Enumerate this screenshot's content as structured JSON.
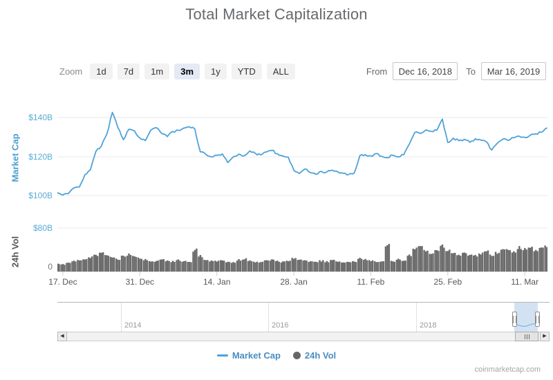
{
  "title": "Total Market Capitalization",
  "controls": {
    "zoom_label": "Zoom",
    "zoom_buttons": [
      {
        "label": "1d",
        "selected": false
      },
      {
        "label": "7d",
        "selected": false
      },
      {
        "label": "1m",
        "selected": false
      },
      {
        "label": "3m",
        "selected": true
      },
      {
        "label": "1y",
        "selected": false
      },
      {
        "label": "YTD",
        "selected": false
      },
      {
        "label": "ALL",
        "selected": false
      }
    ],
    "from_label": "From",
    "from_value": "Dec 16, 2018",
    "to_label": "To",
    "to_value": "Mar 16, 2019"
  },
  "chart_data": {
    "type": "line",
    "x_start": "Dec 16, 2018",
    "x_end": "Mar 16, 2019",
    "x_unit": "day",
    "xaxis_ticks": [
      {
        "label": "17. Dec",
        "day": 1
      },
      {
        "label": "31. Dec",
        "day": 15
      },
      {
        "label": "14. Jan",
        "day": 29
      },
      {
        "label": "28. Jan",
        "day": 43
      },
      {
        "label": "11. Feb",
        "day": 57
      },
      {
        "label": "25. Feb",
        "day": 71
      },
      {
        "label": "11. Mar",
        "day": 85
      }
    ],
    "panes": [
      {
        "type": "line",
        "name": "Market Cap",
        "yaxis_title": "Market Cap",
        "unit": "USD billions",
        "ylim": [
          97,
          154
        ],
        "yticks": [
          "$100B",
          "$120B",
          "$140B"
        ],
        "color": "#4da2d8",
        "grid": true,
        "values": [
          101.4,
          100.2,
          101.0,
          103.9,
          104.4,
          110.7,
          113.1,
          122.6,
          125.3,
          131.5,
          142.6,
          134.8,
          128.6,
          133.9,
          133.2,
          129.4,
          128.1,
          133.5,
          134.8,
          131.7,
          130.2,
          132.8,
          133.4,
          134.6,
          135.2,
          134.1,
          122.4,
          121.1,
          119.8,
          120.6,
          121.3,
          116.9,
          119.8,
          121.2,
          120.4,
          122.9,
          121.6,
          120.8,
          122.3,
          123.1,
          121.4,
          120.2,
          119.6,
          112.9,
          111.3,
          113.6,
          111.8,
          110.9,
          112.4,
          112.1,
          113.0,
          112.2,
          111.4,
          110.8,
          111.6,
          120.4,
          120.9,
          120.3,
          121.5,
          120.1,
          119.4,
          120.6,
          119.8,
          120.9,
          126.3,
          132.4,
          131.8,
          133.6,
          132.9,
          133.4,
          139.2,
          127.2,
          129.4,
          128.1,
          128.8,
          127.3,
          129.1,
          128.4,
          127.6,
          123.3,
          126.8,
          128.9,
          128.2,
          129.6,
          130.4,
          129.8,
          130.9,
          131.6,
          132.4,
          134.6
        ]
      },
      {
        "type": "column",
        "name": "24h Vol",
        "yaxis_title": "24h Vol",
        "unit": "USD billions",
        "ylim": [
          0,
          100
        ],
        "yticks": [
          "0",
          "$80B"
        ],
        "color": "#6b6b6b",
        "grid": true,
        "values": [
          14.2,
          13.1,
          15.4,
          18.9,
          20.2,
          21.6,
          26.4,
          30.1,
          34.8,
          30.6,
          25.2,
          22.4,
          28.3,
          31.2,
          27.6,
          24.1,
          21.8,
          19.6,
          18.9,
          21.4,
          20.2,
          18.8,
          20.6,
          18.4,
          17.9,
          39.4,
          28.6,
          21.8,
          19.4,
          18.6,
          19.8,
          17.9,
          17.1,
          21.2,
          23.4,
          19.8,
          18.2,
          17.6,
          19.4,
          21.2,
          18.6,
          17.4,
          18.8,
          23.6,
          20.8,
          19.4,
          17.8,
          16.9,
          19.8,
          18.4,
          20.3,
          18.9,
          17.8,
          17.2,
          18.6,
          24.8,
          21.9,
          19.8,
          18.9,
          18.2,
          48.2,
          18.4,
          22.6,
          20.4,
          30.7,
          42.2,
          44.8,
          38.4,
          34.6,
          36.8,
          47.6,
          40.2,
          33.8,
          31.4,
          34.2,
          30.8,
          28.6,
          33.4,
          36.2,
          29.8,
          34.6,
          42.4,
          39.8,
          37.2,
          44.6,
          41.8,
          43.2,
          39.6,
          42.8,
          46.4
        ]
      }
    ],
    "legend_position": "bottom"
  },
  "navigator": {
    "years": [
      "2014",
      "2016",
      "2018"
    ]
  },
  "legend": [
    {
      "label": "Market Cap",
      "marker": "line",
      "color": "#4da2d8"
    },
    {
      "label": "24h Vol",
      "marker": "circle",
      "color": "#666666"
    }
  ],
  "watermark": "coinmarketcap.com",
  "colors": {
    "line_blue": "#4da2d8",
    "volume_gray": "#6b6b6b",
    "axis_label_blue": "#58abd6",
    "legend_text_blue": "#4a8dbf",
    "selected_button_bg": "#e4e9f5"
  }
}
